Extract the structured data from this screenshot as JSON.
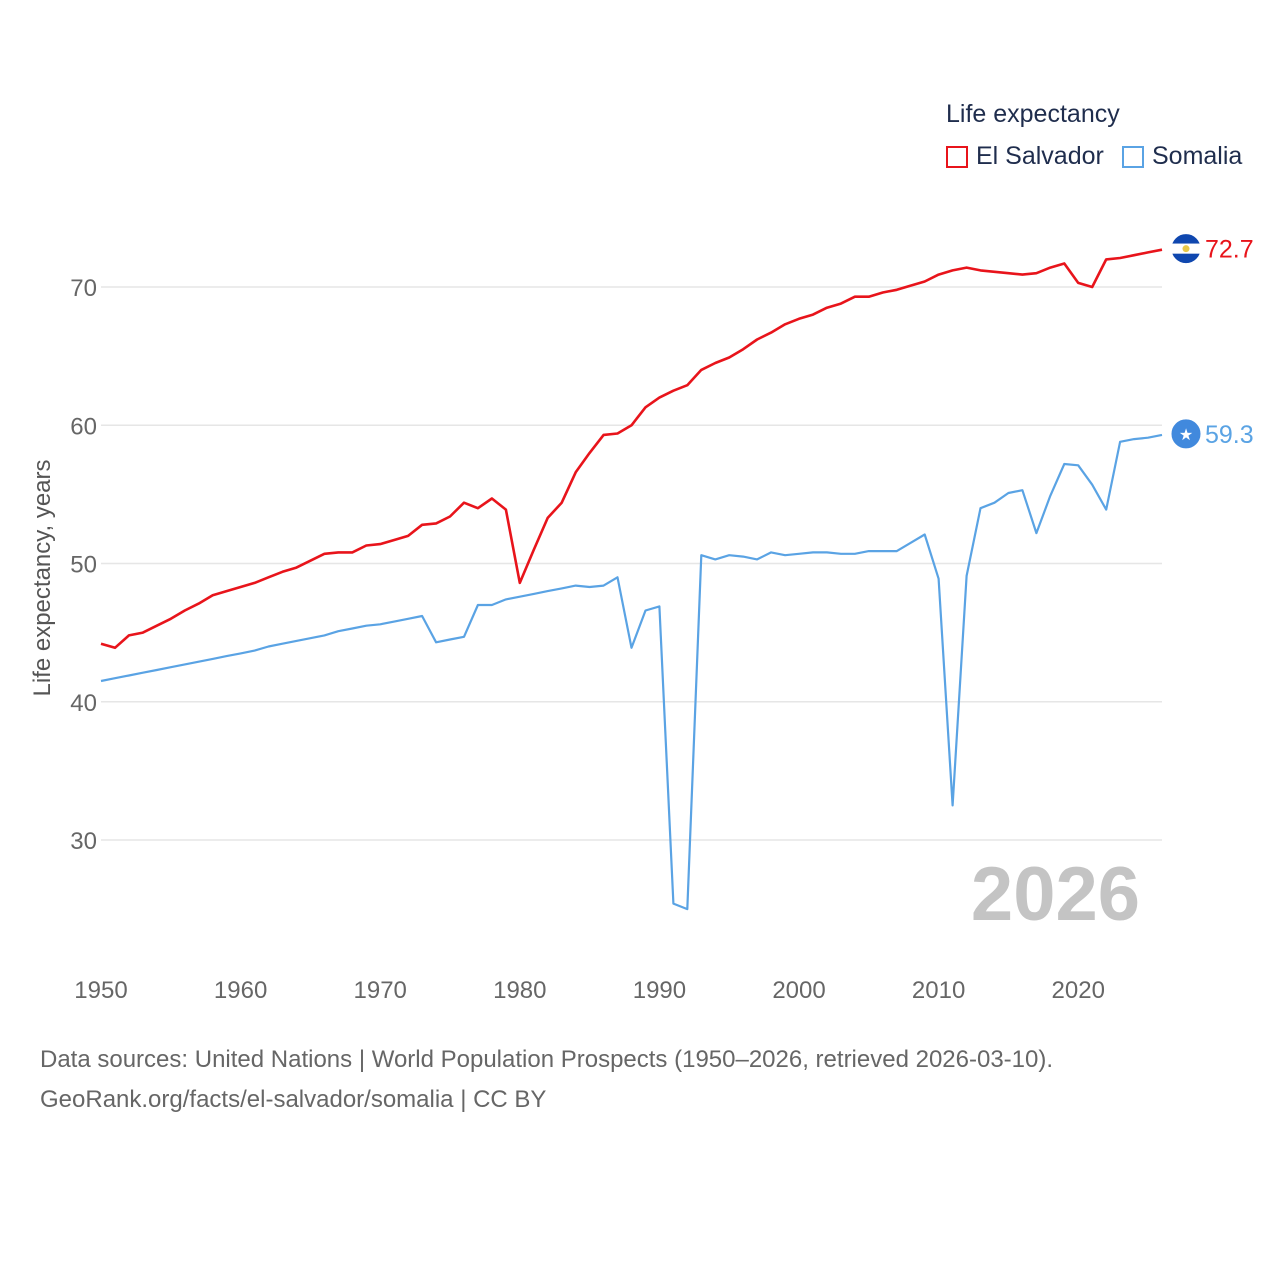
{
  "legend": {
    "title": "Life expectancy",
    "items": [
      {
        "label": "El Salvador",
        "color": "#e8141b"
      },
      {
        "label": "Somalia",
        "color": "#5aa3e4"
      }
    ]
  },
  "year_watermark": "2026",
  "footer": {
    "line1": "Data sources: United Nations | World Population Prospects (1950–2026, retrieved 2026-03-10).",
    "line2": "GeoRank.org/facts/el-salvador/somalia | CC BY"
  },
  "chart_data": {
    "type": "line",
    "title": "Life expectancy",
    "xlabel": "",
    "ylabel": "Life expectancy, years",
    "xlim": [
      1950,
      2026
    ],
    "ylim": [
      22,
      75
    ],
    "xticks": [
      1950,
      1960,
      1970,
      1980,
      1990,
      2000,
      2010,
      2020
    ],
    "yticks": [
      30,
      40,
      50,
      60,
      70
    ],
    "grid": true,
    "legend_position": "top-right",
    "x": [
      1950,
      1951,
      1952,
      1953,
      1954,
      1955,
      1956,
      1957,
      1958,
      1959,
      1960,
      1961,
      1962,
      1963,
      1964,
      1965,
      1966,
      1967,
      1968,
      1969,
      1970,
      1971,
      1972,
      1973,
      1974,
      1975,
      1976,
      1977,
      1978,
      1979,
      1980,
      1981,
      1982,
      1983,
      1984,
      1985,
      1986,
      1987,
      1988,
      1989,
      1990,
      1991,
      1992,
      1993,
      1994,
      1995,
      1996,
      1997,
      1998,
      1999,
      2000,
      2001,
      2002,
      2003,
      2004,
      2005,
      2006,
      2007,
      2008,
      2009,
      2010,
      2011,
      2012,
      2013,
      2014,
      2015,
      2016,
      2017,
      2018,
      2019,
      2020,
      2021,
      2022,
      2023,
      2024,
      2025,
      2026
    ],
    "series": [
      {
        "name": "El Salvador",
        "color": "#e8141b",
        "end_label": "72.7",
        "values": [
          44.2,
          43.9,
          44.8,
          45.0,
          45.5,
          46.0,
          46.6,
          47.1,
          47.7,
          48.0,
          48.3,
          48.6,
          49.0,
          49.4,
          49.7,
          50.2,
          50.7,
          50.8,
          50.8,
          51.3,
          51.4,
          51.7,
          52.0,
          52.8,
          52.9,
          53.4,
          54.4,
          54.0,
          54.7,
          53.9,
          48.6,
          51.0,
          53.3,
          54.4,
          56.6,
          58.0,
          59.3,
          59.4,
          60.0,
          61.3,
          62.0,
          62.5,
          62.9,
          64.0,
          64.5,
          64.9,
          65.5,
          66.2,
          66.7,
          67.3,
          67.7,
          68.0,
          68.5,
          68.8,
          69.3,
          69.3,
          69.6,
          69.8,
          70.1,
          70.4,
          70.9,
          71.2,
          71.4,
          71.2,
          71.1,
          71.0,
          70.9,
          71.0,
          71.4,
          71.7,
          70.3,
          70.0,
          72.0,
          72.1,
          72.3,
          72.5,
          72.7
        ]
      },
      {
        "name": "Somalia",
        "color": "#5aa3e4",
        "end_label": "59.3",
        "values": [
          41.5,
          41.7,
          41.9,
          42.1,
          42.3,
          42.5,
          42.7,
          42.9,
          43.1,
          43.3,
          43.5,
          43.7,
          44.0,
          44.2,
          44.4,
          44.6,
          44.8,
          45.1,
          45.3,
          45.5,
          45.6,
          45.8,
          46.0,
          46.2,
          44.3,
          44.5,
          44.7,
          47.0,
          47.0,
          47.4,
          47.6,
          47.8,
          48.0,
          48.2,
          48.4,
          48.3,
          48.4,
          49.0,
          43.9,
          46.6,
          46.9,
          25.4,
          25.0,
          50.6,
          50.3,
          50.6,
          50.5,
          50.3,
          50.8,
          50.6,
          50.7,
          50.8,
          50.8,
          50.7,
          50.7,
          50.9,
          50.9,
          50.9,
          51.5,
          52.1,
          48.9,
          32.5,
          49.1,
          54.0,
          54.4,
          55.1,
          55.3,
          52.2,
          54.9,
          57.2,
          57.1,
          55.7,
          53.9,
          58.8,
          59.0,
          59.1,
          59.3
        ]
      }
    ]
  }
}
